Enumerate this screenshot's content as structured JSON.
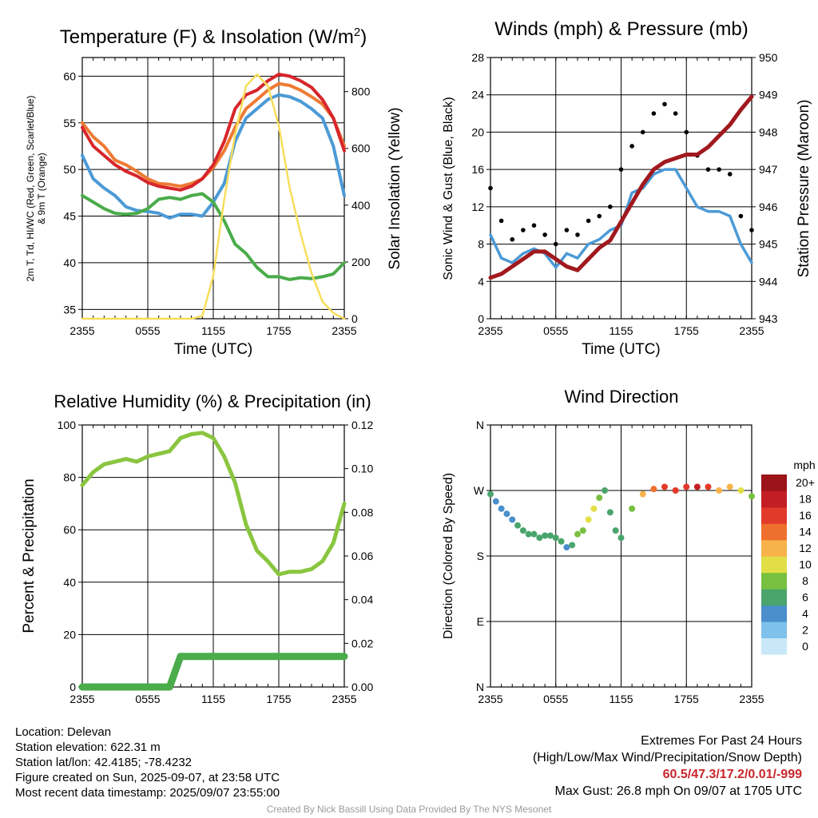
{
  "colors": {
    "temp": "#d7262b",
    "heat_index": "#ee7a33",
    "dewpoint": "#4aac4a",
    "t9m": "#ee7a33",
    "insolation": "#f7de5b",
    "sonic_wind": "#4c9ad6",
    "gust": "#000000",
    "pressure": "#a0191e",
    "rh": "#8ac53f",
    "precip": "#4aac4a"
  },
  "time_ticks": [
    "2355",
    "0555",
    "1155",
    "1755",
    "2355"
  ],
  "chart_data": [
    {
      "type": "line",
      "title": "Temperature (F) & Insolation (W/m²)",
      "title_main": "Temperature (F) & Insolation (W/m",
      "title_sup": "2",
      "title_end": ")",
      "xlabel": "Time (UTC)",
      "ylabel_left_1": "2m T, Td, HI/WC (Red, Green, Scarlet/Blue)",
      "ylabel_left_2": "& 9m T (Orange)",
      "ylabel_right": "Solar Insolation (Yellow)",
      "ylim": [
        34,
        62
      ],
      "ylim_right": [
        0,
        920
      ],
      "yticks": [
        35,
        40,
        45,
        50,
        55,
        60
      ],
      "yticks_right": [
        0,
        200,
        400,
        600,
        800
      ],
      "x_hours": [
        0,
        1,
        2,
        3,
        4,
        5,
        6,
        7,
        8,
        9,
        10,
        11,
        12,
        13,
        14,
        15,
        16,
        17,
        18,
        19,
        20,
        21,
        22,
        23,
        24
      ],
      "series": [
        {
          "key": "t9m",
          "values": [
            55,
            53.5,
            52.5,
            51,
            50.5,
            49.8,
            49,
            48.5,
            48.4,
            48.2,
            48.5,
            49,
            50.2,
            52,
            54.5,
            56.5,
            57.5,
            58.5,
            59.2,
            59,
            58.5,
            57.8,
            57,
            55.5,
            52.5
          ]
        },
        {
          "key": "temp",
          "values": [
            54.5,
            52.5,
            51.5,
            50.5,
            49.8,
            49.3,
            48.6,
            48.2,
            48,
            47.8,
            48.2,
            49,
            50.5,
            53,
            56.5,
            58,
            58.5,
            59.5,
            60.2,
            60,
            59.5,
            58.8,
            57.5,
            55.5,
            52
          ]
        },
        {
          "key": "sonic_wind",
          "values": [
            51.5,
            49,
            48,
            47.2,
            46,
            45.6,
            45.5,
            45.3,
            44.8,
            45.2,
            45.2,
            45,
            46.5,
            48.5,
            53,
            55.5,
            56.5,
            57.5,
            58,
            57.8,
            57.3,
            56.5,
            55.5,
            52.5,
            47.2
          ]
        },
        {
          "key": "dewpoint",
          "values": [
            47.2,
            46.5,
            45.8,
            45.3,
            45.2,
            45.3,
            45.8,
            46.8,
            47,
            46.8,
            47.2,
            47.4,
            46.5,
            44.5,
            42,
            41,
            39.5,
            38.5,
            38.5,
            38.2,
            38.4,
            38.3,
            38.5,
            38.8,
            40
          ]
        },
        {
          "key": "insolation",
          "axis": "right",
          "values": [
            0,
            0,
            0,
            0,
            0,
            0,
            0,
            0,
            0,
            0,
            0,
            10,
            150,
            420,
            650,
            820,
            860,
            820,
            680,
            460,
            300,
            160,
            60,
            20,
            0
          ]
        }
      ]
    },
    {
      "type": "line",
      "title": "Winds (mph) & Pressure (mb)",
      "xlabel": "Time (UTC)",
      "ylabel_left": "Sonic Wind & Gust (Blue, Black)",
      "ylabel_right": "Station Pressure (Maroon)",
      "ylim": [
        0,
        28
      ],
      "ylim_right": [
        943,
        950
      ],
      "yticks": [
        0,
        4,
        8,
        12,
        16,
        20,
        24,
        28
      ],
      "yticks_right": [
        943,
        944,
        945,
        946,
        947,
        948,
        949,
        950
      ],
      "x_hours": [
        0,
        1,
        2,
        3,
        4,
        5,
        6,
        7,
        8,
        9,
        10,
        11,
        12,
        13,
        14,
        15,
        16,
        17,
        18,
        19,
        20,
        21,
        22,
        23,
        24
      ],
      "series": [
        {
          "key": "sonic_wind",
          "values": [
            9,
            6.5,
            6,
            7,
            7.5,
            7,
            5.5,
            7,
            6.5,
            8,
            8.5,
            9.5,
            10,
            13.5,
            14,
            15.5,
            16,
            16,
            14,
            12,
            11.5,
            11.5,
            11,
            8,
            6
          ]
        },
        {
          "key": "gust",
          "values": [
            14,
            10.5,
            8.5,
            9.5,
            10,
            9,
            8,
            9.5,
            9,
            10.5,
            11,
            12,
            16,
            18.5,
            20,
            22,
            23,
            22,
            20,
            17.5,
            16,
            16,
            15.5,
            11,
            9.5
          ]
        },
        {
          "key": "pressure",
          "axis": "right",
          "values": [
            944.1,
            944.2,
            944.4,
            944.6,
            944.8,
            944.8,
            944.6,
            944.4,
            944.3,
            944.6,
            944.9,
            945.1,
            945.6,
            946.1,
            946.6,
            947.0,
            947.2,
            947.3,
            947.4,
            947.4,
            947.6,
            947.9,
            948.2,
            948.6,
            948.95
          ]
        }
      ]
    },
    {
      "type": "line",
      "title": "Relative Humidity (%) & Precipitation (in)",
      "xlabel": "",
      "ylabel_left": "Percent & Precipitation",
      "ylim": [
        0,
        100
      ],
      "ylim_right": [
        0,
        0.12
      ],
      "yticks": [
        0,
        20,
        40,
        60,
        80,
        100
      ],
      "yticks_right": [
        "0.00",
        "0.02",
        "0.04",
        "0.06",
        "0.08",
        "0.10",
        "0.12"
      ],
      "x_hours": [
        0,
        1,
        2,
        3,
        4,
        5,
        6,
        7,
        8,
        9,
        10,
        11,
        12,
        13,
        14,
        15,
        16,
        17,
        18,
        19,
        20,
        21,
        22,
        23,
        24
      ],
      "series": [
        {
          "key": "rh",
          "values": [
            77,
            82,
            85,
            86,
            87,
            86,
            88,
            89,
            90,
            95,
            96.5,
            97,
            95,
            88,
            78,
            62,
            52,
            48,
            43,
            44,
            44,
            45,
            48,
            55,
            70
          ]
        },
        {
          "key": "precip",
          "axis": "right",
          "values": [
            0,
            0,
            0,
            0,
            0,
            0,
            0,
            0,
            0.0,
            0.014,
            0.014,
            0.014,
            0.014,
            0.014,
            0.014,
            0.014,
            0.014,
            0.014,
            0.014,
            0.014,
            0.014,
            0.014,
            0.014,
            0.014,
            0.014
          ]
        }
      ]
    },
    {
      "type": "scatter",
      "title": "Wind Direction",
      "xlabel": "",
      "ylabel_left": "Direction (Colored By Speed)",
      "ylabels": [
        "N",
        "E",
        "S",
        "W",
        "N"
      ],
      "colorbar_unit": "mph",
      "colorbar_labels": [
        "0",
        "2",
        "4",
        "6",
        "8",
        "10",
        "12",
        "14",
        "16",
        "18",
        "20+"
      ],
      "colorbar_colors": [
        "#c8e8f8",
        "#7ec1ea",
        "#4a8fcc",
        "#4aa56c",
        "#78c040",
        "#e2df46",
        "#f7b34a",
        "#ef6f2e",
        "#e23a2a",
        "#c21e24",
        "#9c1419"
      ],
      "x_hours": [
        0,
        0.5,
        1,
        1.5,
        2,
        2.5,
        3,
        3.5,
        4,
        4.5,
        5,
        5.5,
        6,
        6.5,
        7,
        7.5,
        8,
        8.5,
        9,
        9.5,
        10,
        10.5,
        11,
        11.5,
        12,
        13,
        14,
        15,
        16,
        17,
        18,
        19,
        20,
        21,
        22,
        23,
        24
      ],
      "directions": [
        265,
        255,
        245,
        238,
        230,
        222,
        215,
        210,
        210,
        205,
        208,
        208,
        205,
        200,
        192,
        195,
        210,
        215,
        230,
        245,
        260,
        270,
        240,
        215,
        205,
        245,
        265,
        272,
        275,
        270,
        275,
        275,
        275,
        270,
        275,
        270,
        262
      ],
      "speeds": [
        6,
        5,
        5,
        4,
        5,
        6,
        6,
        6,
        6,
        7,
        7,
        7,
        7,
        6,
        5,
        7,
        8,
        9,
        10,
        11,
        8,
        6,
        7,
        6,
        7,
        9,
        12,
        14,
        16,
        17,
        16,
        18,
        16,
        13,
        12,
        11,
        8
      ]
    }
  ],
  "footer": {
    "location": "Location: Delevan",
    "elevation": "Station elevation: 622.31 m",
    "latlon": "Station lat/lon: 42.4185; -78.4232",
    "created": "Figure created on Sun, 2025-09-07, at 23:58 UTC",
    "recent": "Most recent data timestamp: 2025/09/07 23:55:00",
    "extremes_title": "Extremes For Past 24 Hours",
    "extremes_legend": "(High/Low/Max Wind/Precipitation/Snow Depth)",
    "extremes_values": "60.5/47.3/17.2/0.01/-999",
    "max_gust": "Max Gust: 26.8 mph On 09/07 at 1705 UTC",
    "credit": "Created By Nick Bassill Using Data Provided By The NYS Mesonet"
  }
}
